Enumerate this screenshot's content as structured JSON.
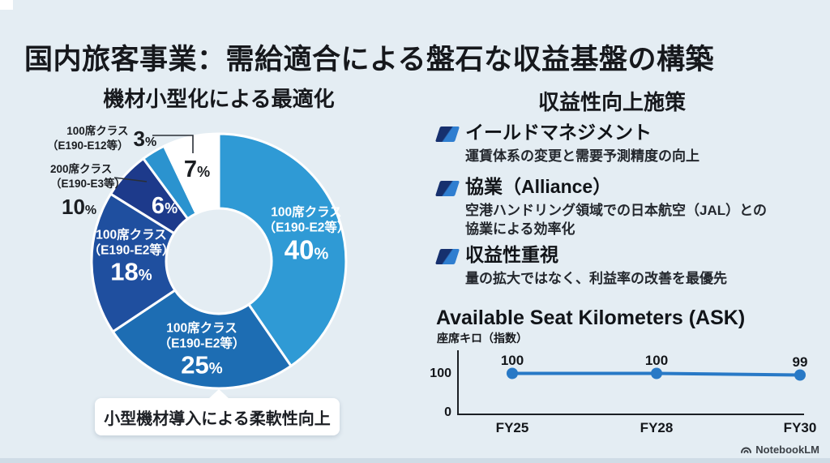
{
  "slide": {
    "title": "国内旅客事業：需給適合による盤石な収益基盤の構築",
    "brand": "NotebookLM"
  },
  "left_panel": {
    "title": "機材小型化による最適化",
    "caption": "小型機材導入による柔軟性向上"
  },
  "right_panel": {
    "title": "収益性向上施策",
    "bullets": [
      {
        "heading": "イールドマネジメント",
        "body": [
          "運賃体系の変更と需要予測精度の向上"
        ]
      },
      {
        "heading": "協業（Alliance）",
        "body": [
          "空港ハンドリング領域での日本航空（JAL）との",
          "協業による効率化"
        ]
      },
      {
        "heading": "収益性重視",
        "body": [
          "量の拡大ではなく、利益率の改善を最優先"
        ]
      }
    ]
  },
  "chart_data": [
    {
      "type": "pie",
      "variant": "donut",
      "title": "機材小型化による最適化",
      "unit": "%",
      "segments": [
        {
          "label": "100席クラス（E190-E2等）",
          "value": 40,
          "color": "#2f9ad5",
          "label_lines": [
            "100席クラス",
            "（E190-E2等）"
          ]
        },
        {
          "label": "100席クラス（E190-E2等）",
          "value": 25,
          "color": "#1d6db3",
          "label_lines": [
            "100席クラス",
            "（E190-E2等）"
          ]
        },
        {
          "label": "100席クラス（E190-E2等）",
          "value": 18,
          "color": "#1f4f9f",
          "label_lines": [
            "100席クラス",
            "（E190-E2等）"
          ]
        },
        {
          "label": "",
          "value": 6,
          "color": "#1d3a8b",
          "label_lines": []
        },
        {
          "label": "",
          "value": 3,
          "color": "#2b93cf",
          "label_lines": []
        },
        {
          "label": "",
          "value": 7,
          "color": "#ffffff",
          "label_lines": []
        }
      ],
      "callouts": [
        {
          "value": 3,
          "label_lines": [
            "100席クラス",
            "（E190-E12等）"
          ]
        },
        {
          "value": 10,
          "label_lines": [
            "200席クラス",
            "（E190-E3等）"
          ]
        }
      ],
      "caption": "小型機材導入による柔軟性向上"
    },
    {
      "type": "line",
      "title": "Available Seat Kilometers (ASK)",
      "subtitle": "座席キロ（指数）",
      "categories": [
        "FY25",
        "FY28",
        "FY30"
      ],
      "values": [
        100,
        100,
        99
      ],
      "ylim": [
        0,
        100
      ],
      "yticks": [
        100,
        0
      ],
      "grid": false,
      "legend": false,
      "line_color": "#2879c6"
    }
  ]
}
